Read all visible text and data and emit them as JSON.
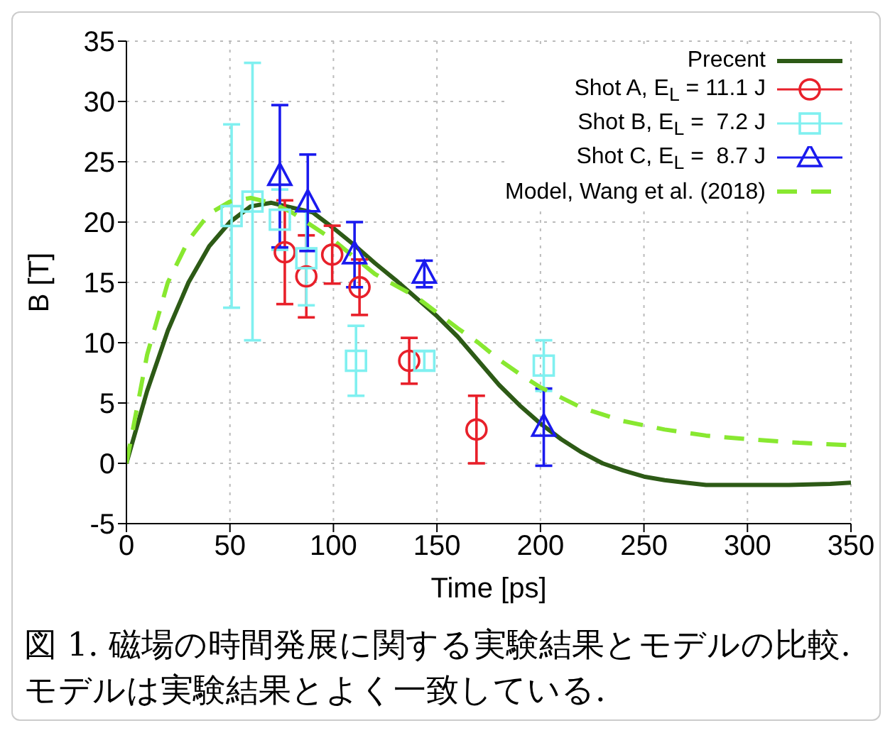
{
  "chart_data": {
    "type": "scatter",
    "xlabel": "Time [ps]",
    "ylabel": "B [T]",
    "xlim": [
      0,
      350
    ],
    "ylim": [
      -5,
      35
    ],
    "xticks": [
      0,
      50,
      100,
      150,
      200,
      250,
      300,
      350
    ],
    "yticks": [
      -5,
      0,
      5,
      10,
      15,
      20,
      25,
      30,
      35
    ],
    "grid": true,
    "legend": "top right",
    "annotations": [
      "図 1. 磁場の時間発展に関する実験結果とモデルの比較. モデルは実験結果とよく一致している."
    ],
    "series": [
      {
        "name": "Precent",
        "type": "line",
        "color": "#2d5a16",
        "line_style": "solid",
        "x": [
          0,
          10,
          20,
          30,
          40,
          50,
          60,
          70,
          80,
          90,
          100,
          110,
          120,
          130,
          140,
          150,
          160,
          170,
          180,
          190,
          200,
          210,
          220,
          230,
          240,
          250,
          260,
          270,
          280,
          300,
          320,
          340,
          350
        ],
        "values": [
          0,
          6,
          11,
          15,
          18,
          20,
          21.3,
          21.6,
          21.2,
          20.8,
          19.5,
          18.1,
          16.6,
          15.2,
          13.7,
          12.2,
          10.5,
          8.5,
          6.5,
          4.8,
          3.3,
          2,
          0.9,
          0,
          -0.6,
          -1.1,
          -1.4,
          -1.6,
          -1.8,
          -1.8,
          -1.8,
          -1.7,
          -1.6
        ]
      },
      {
        "name": "Shot A, E$_{L}$ = 11.1 J",
        "color": "#e8202a",
        "marker": "circle",
        "x": [
          76.5,
          86.9,
          99.4,
          112.6,
          136.6,
          169.1
        ],
        "values": [
          17.5,
          15.5,
          17.3,
          14.6,
          8.5,
          2.8
        ],
        "errors": [
          4.3,
          3.4,
          2.4,
          2.3,
          1.9,
          2.8
        ]
      },
      {
        "name": "Shot B, E$_{L}$ =  7.2 J",
        "color": "#80f0f0",
        "marker": "square",
        "x": [
          50.8,
          60.9,
          74.1,
          86.9,
          110.9,
          143.9,
          201.6
        ],
        "values": [
          20.5,
          21.7,
          20.2,
          17,
          8.5,
          8.5,
          8.1
        ],
        "errors": [
          7.6,
          11.5,
          2.5,
          3.9,
          2.9,
          0.8,
          2.1
        ]
      },
      {
        "name": "Shot C, E$_{L}$ =  8.7 J",
        "color": "#1a1aee",
        "marker": "triangle",
        "x": [
          74.1,
          87.6,
          110.2,
          143.9,
          201.6
        ],
        "values": [
          23.8,
          21.6,
          17.3,
          15.7,
          3
        ],
        "errors": [
          5.9,
          4,
          2.7,
          1.1,
          3.2
        ]
      },
      {
        "name": "Model, Wang et al. (2018)",
        "type": "line",
        "color": "#88e830",
        "line_style": "dashed",
        "x": [
          0,
          10,
          20,
          30,
          40,
          50,
          60,
          70,
          80,
          100,
          120,
          140,
          150,
          160,
          170,
          180,
          190,
          200,
          220,
          240,
          260,
          280,
          300,
          325,
          350
        ],
        "values": [
          0,
          9,
          15,
          18.5,
          20.7,
          21.7,
          22,
          21.6,
          20.8,
          18.5,
          15.7,
          13.8,
          12.5,
          11.2,
          10,
          8.6,
          7.4,
          6.3,
          4.6,
          3.5,
          2.8,
          2.3,
          2,
          1.7,
          1.5
        ]
      }
    ]
  }
}
